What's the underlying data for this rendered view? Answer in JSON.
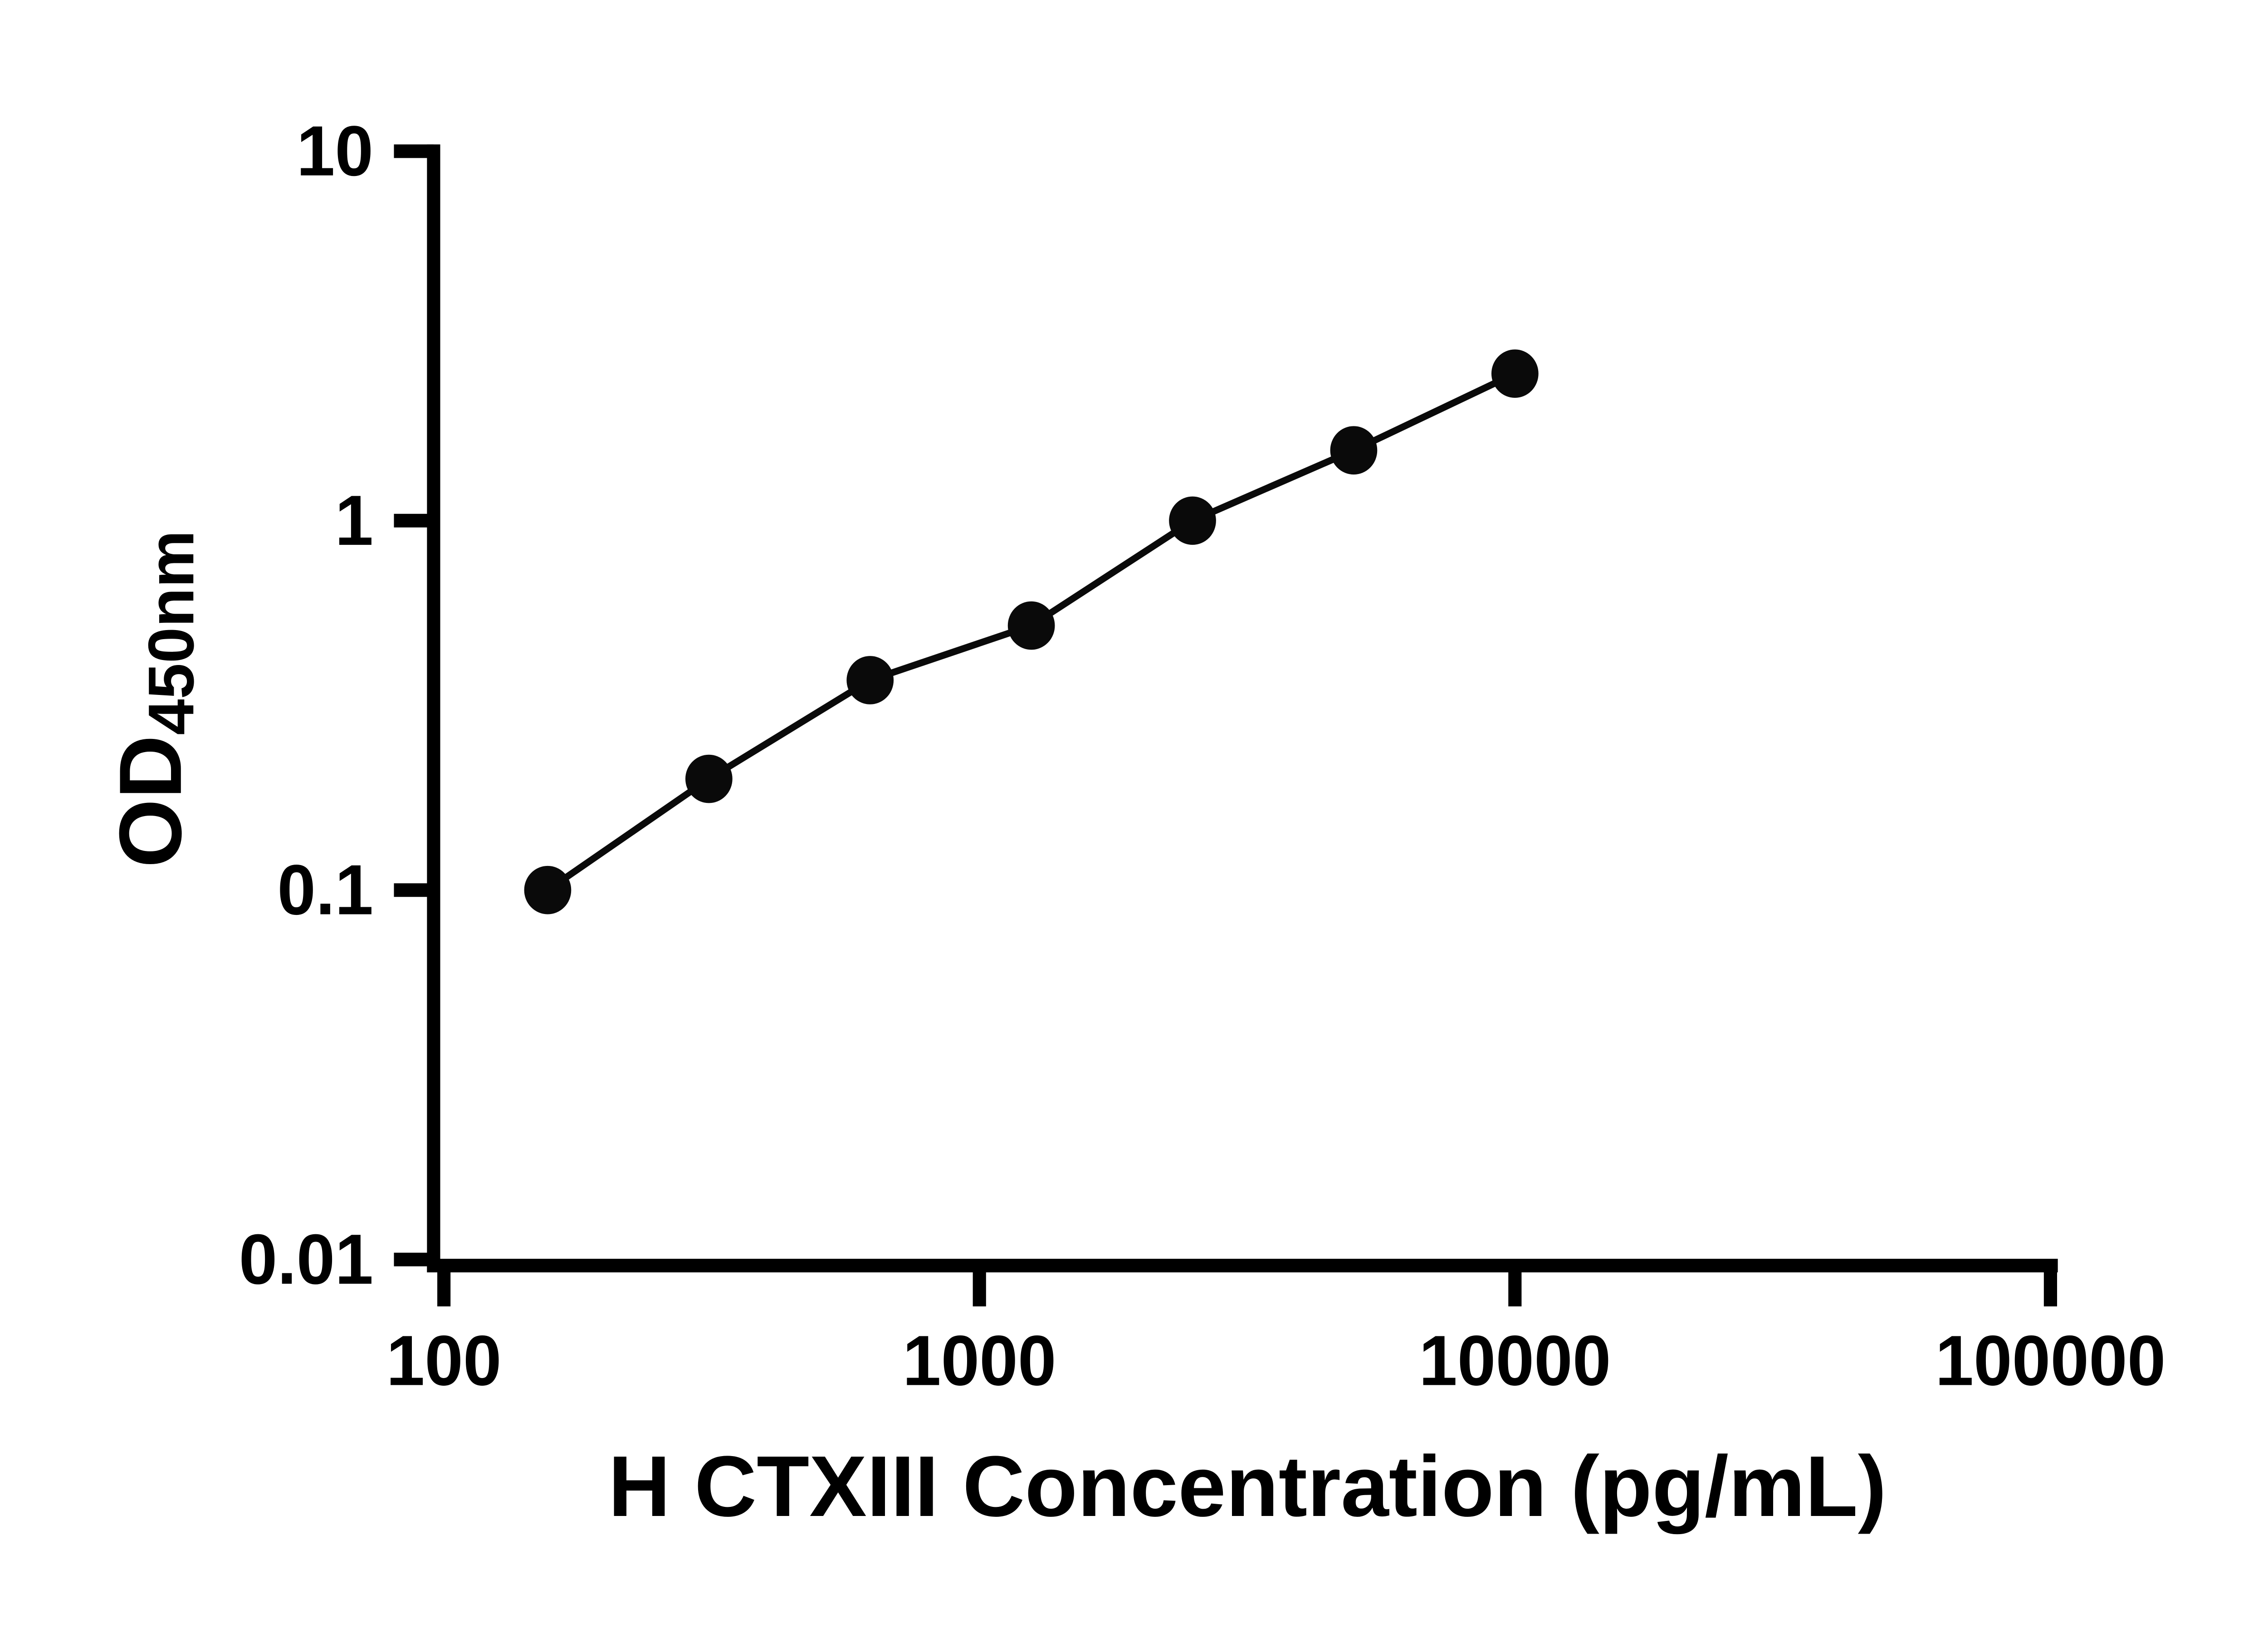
{
  "chart_data": {
    "type": "scatter",
    "title": "",
    "xlabel": "H CTXIII Concentration (pg/mL)",
    "ylabel_main": "OD",
    "ylabel_sub": "450nm",
    "xscale": "log",
    "yscale": "log",
    "xlim": [
      100,
      100000
    ],
    "ylim": [
      0.01,
      10
    ],
    "x": [
      156.25,
      312.5,
      625,
      1250,
      2500,
      5000,
      10000
    ],
    "y": [
      0.1,
      0.2,
      0.37,
      0.52,
      1.0,
      1.55,
      2.5
    ],
    "x_ticks": [
      {
        "value": 100,
        "label": "100"
      },
      {
        "value": 1000,
        "label": "1000"
      },
      {
        "value": 10000,
        "label": "10000"
      },
      {
        "value": 100000,
        "label": "100000"
      }
    ],
    "y_ticks": [
      {
        "value": 10,
        "label": "10"
      },
      {
        "value": 1,
        "label": "1"
      },
      {
        "value": 0.1,
        "label": "0.1"
      },
      {
        "value": 0.01,
        "label": "0.01"
      }
    ],
    "grid": false,
    "legend": null,
    "marker": "circle",
    "marker_color": "#0a0a0a",
    "line_color": "#0a0a0a",
    "axis_color": "#000000",
    "background_color": "#ffffff"
  }
}
